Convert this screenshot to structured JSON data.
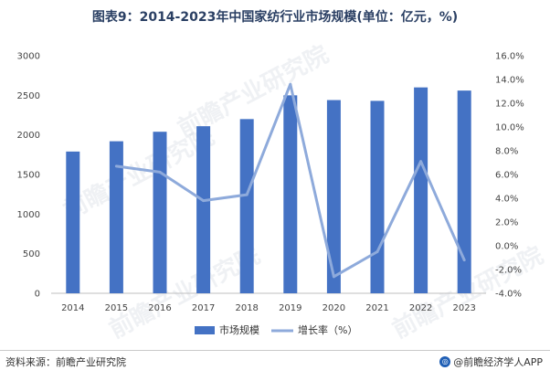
{
  "title": "图表9：2014-2023年中国家纺行业市场规模(单位：亿元，%)",
  "source": "资料来源：前瞻产业研究院",
  "brand": "@前瞻经济学人APP",
  "watermark": "前瞻产业研究院",
  "colors": {
    "bar": "#4472c4",
    "line": "#8eaadb",
    "title": "#2a3f63"
  },
  "chart_data": {
    "type": "bar",
    "categories": [
      "2014",
      "2015",
      "2016",
      "2017",
      "2018",
      "2019",
      "2020",
      "2021",
      "2022",
      "2023"
    ],
    "series": [
      {
        "name": "市场规模",
        "type": "bar",
        "axis": "left",
        "values": [
          1790,
          1920,
          2040,
          2110,
          2200,
          2500,
          2440,
          2430,
          2600,
          2560
        ]
      },
      {
        "name": "增长率（%）",
        "type": "line",
        "axis": "right",
        "values": [
          null,
          6.7,
          6.2,
          3.8,
          4.3,
          13.6,
          -2.6,
          -0.5,
          7.1,
          -1.2
        ]
      }
    ],
    "ylim_left": [
      0,
      3000
    ],
    "yticks_left": [
      "0",
      "500",
      "1000",
      "1500",
      "2000",
      "2500",
      "3000"
    ],
    "ylim_right": [
      -4,
      16
    ],
    "yticks_right": [
      "-4.0%",
      "-2.0%",
      "0.0%",
      "2.0%",
      "4.0%",
      "6.0%",
      "8.0%",
      "10.0%",
      "12.0%",
      "14.0%",
      "16.0%"
    ],
    "legend_position": "bottom",
    "grid": false
  }
}
